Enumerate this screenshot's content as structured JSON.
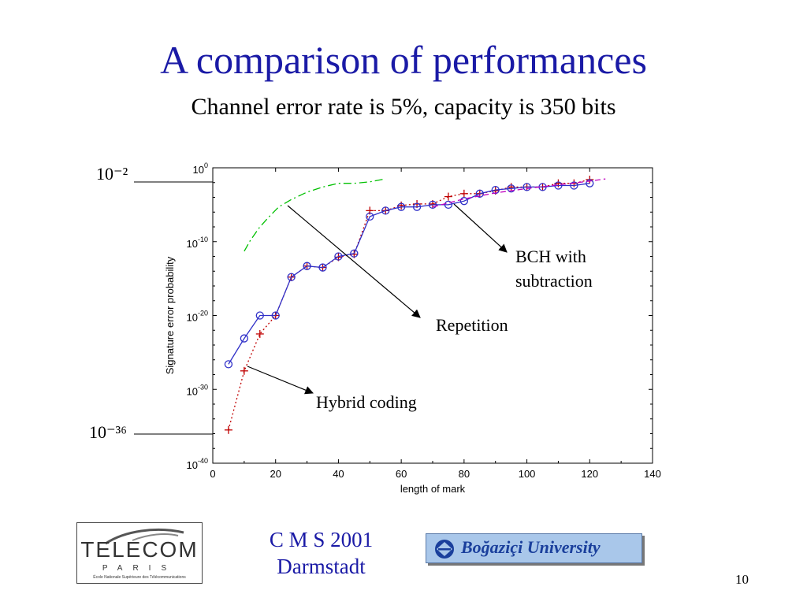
{
  "slide": {
    "title": "A comparison of performances",
    "subtitle": "Channel error rate is 5%, capacity is 350 bits",
    "page_number": "10"
  },
  "footer": {
    "line1": "C M S 2001",
    "line2": "Darmstadt"
  },
  "logos": {
    "telecom_word": "TELECOM",
    "telecom_paris": "PARIS",
    "telecom_school": "École Nationale Supérieure des Télécommunications",
    "university": "Boğaziçi University"
  },
  "annotations": {
    "top_marker": "10⁻²",
    "bottom_marker": "10⁻³⁶",
    "bch_line1": "BCH with",
    "bch_line2": "subtraction",
    "repetition": "Repetition",
    "hybrid": "Hybrid coding"
  },
  "colors": {
    "title": "#1a1aa6",
    "repetition": "#00c000",
    "bch": "#c00000",
    "hybrid": "#3030c8",
    "bch_dashed": "#c000c0"
  },
  "chart_data": {
    "type": "line",
    "xlabel": "length of mark",
    "ylabel": "Signature error probability",
    "x_ticks": [
      0,
      20,
      40,
      60,
      80,
      100,
      120,
      140
    ],
    "y_ticks": [
      "10^0",
      "10^-10",
      "10^-20",
      "10^-30",
      "10^-40"
    ],
    "y_tick_exponents": [
      0,
      -10,
      -20,
      -30,
      -40
    ],
    "xlim": [
      0,
      140
    ],
    "ylim_log10": [
      -40,
      0
    ],
    "y_scale": "log",
    "grid": false,
    "series": [
      {
        "key": "repetition",
        "style": "dash-dot",
        "x": [
          10,
          12,
          15,
          18,
          21,
          25,
          30,
          35,
          40,
          45,
          50,
          55
        ],
        "y_log10": [
          -11.3,
          -9.8,
          -8.0,
          -6.6,
          -5.3,
          -4.3,
          -3.3,
          -2.6,
          -2.1,
          -2.1,
          -1.9,
          -1.5
        ]
      },
      {
        "key": "bch",
        "style": "dotted-plus",
        "x": [
          5,
          10,
          15,
          20,
          25,
          30,
          35,
          40,
          45,
          50,
          55,
          60,
          65,
          70,
          75,
          80,
          85,
          90,
          95,
          100,
          105,
          110,
          115,
          120
        ],
        "y_log10": [
          -35.5,
          -27.5,
          -22.5,
          -20.0,
          -14.8,
          -13.3,
          -13.5,
          -12.1,
          -11.7,
          -5.8,
          -5.8,
          -5.1,
          -4.9,
          -4.9,
          -3.9,
          -3.5,
          -3.5,
          -3.1,
          -2.6,
          -2.6,
          -2.6,
          -2.1,
          -2.1,
          -1.6
        ]
      },
      {
        "key": "hybrid",
        "style": "solid-circle",
        "x": [
          5,
          10,
          15,
          20,
          25,
          30,
          35,
          40,
          45,
          50,
          55,
          60,
          65,
          70,
          75,
          80,
          85,
          90,
          95,
          100,
          105,
          110,
          115,
          120
        ],
        "y_log10": [
          -26.6,
          -23.1,
          -20.0,
          -20.0,
          -14.8,
          -13.3,
          -13.5,
          -12.0,
          -11.6,
          -6.6,
          -5.8,
          -5.3,
          -5.3,
          -5.0,
          -5.0,
          -4.5,
          -3.5,
          -3.0,
          -2.8,
          -2.6,
          -2.6,
          -2.4,
          -2.4,
          -2.1
        ]
      },
      {
        "key": "bch_dashed",
        "style": "dashed",
        "x": [
          70,
          80,
          90,
          100,
          110,
          120,
          125
        ],
        "y_log10": [
          -5.3,
          -4.2,
          -3.4,
          -2.8,
          -2.3,
          -1.8,
          -1.5
        ]
      }
    ]
  }
}
